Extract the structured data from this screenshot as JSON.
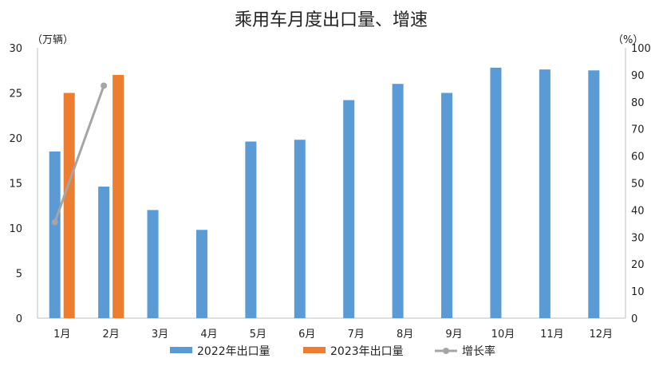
{
  "chart_data": {
    "type": "bar",
    "title": "乘用车月度出口量、增速",
    "categories": [
      "1月",
      "2月",
      "3月",
      "4月",
      "5月",
      "6月",
      "7月",
      "8月",
      "9月",
      "10月",
      "11月",
      "12月"
    ],
    "y_left": {
      "unit": "（万辆）",
      "ylim": [
        0,
        30
      ],
      "ticks": [
        0,
        5,
        10,
        15,
        20,
        25,
        30
      ]
    },
    "y_right": {
      "unit": "（%）",
      "ylim": [
        0,
        100
      ],
      "ticks": [
        0,
        10,
        20,
        30,
        40,
        50,
        60,
        70,
        80,
        90,
        100
      ]
    },
    "series": [
      {
        "name": "2022年出口量",
        "type": "bar",
        "axis": "left",
        "color": "#5B9BD5",
        "values": [
          18.5,
          14.6,
          12.0,
          9.8,
          19.6,
          19.8,
          24.2,
          26.0,
          25.0,
          27.8,
          27.6,
          27.5
        ]
      },
      {
        "name": "2023年出口量",
        "type": "bar",
        "axis": "left",
        "color": "#ED7D31",
        "values": [
          25.0,
          27.0,
          null,
          null,
          null,
          null,
          null,
          null,
          null,
          null,
          null,
          null
        ]
      },
      {
        "name": "增长率",
        "type": "line",
        "axis": "right",
        "color": "#A5A5A5",
        "values": [
          35.5,
          86.0,
          null,
          null,
          null,
          null,
          null,
          null,
          null,
          null,
          null,
          null
        ]
      }
    ],
    "grid": false,
    "legend_position": "bottom"
  }
}
